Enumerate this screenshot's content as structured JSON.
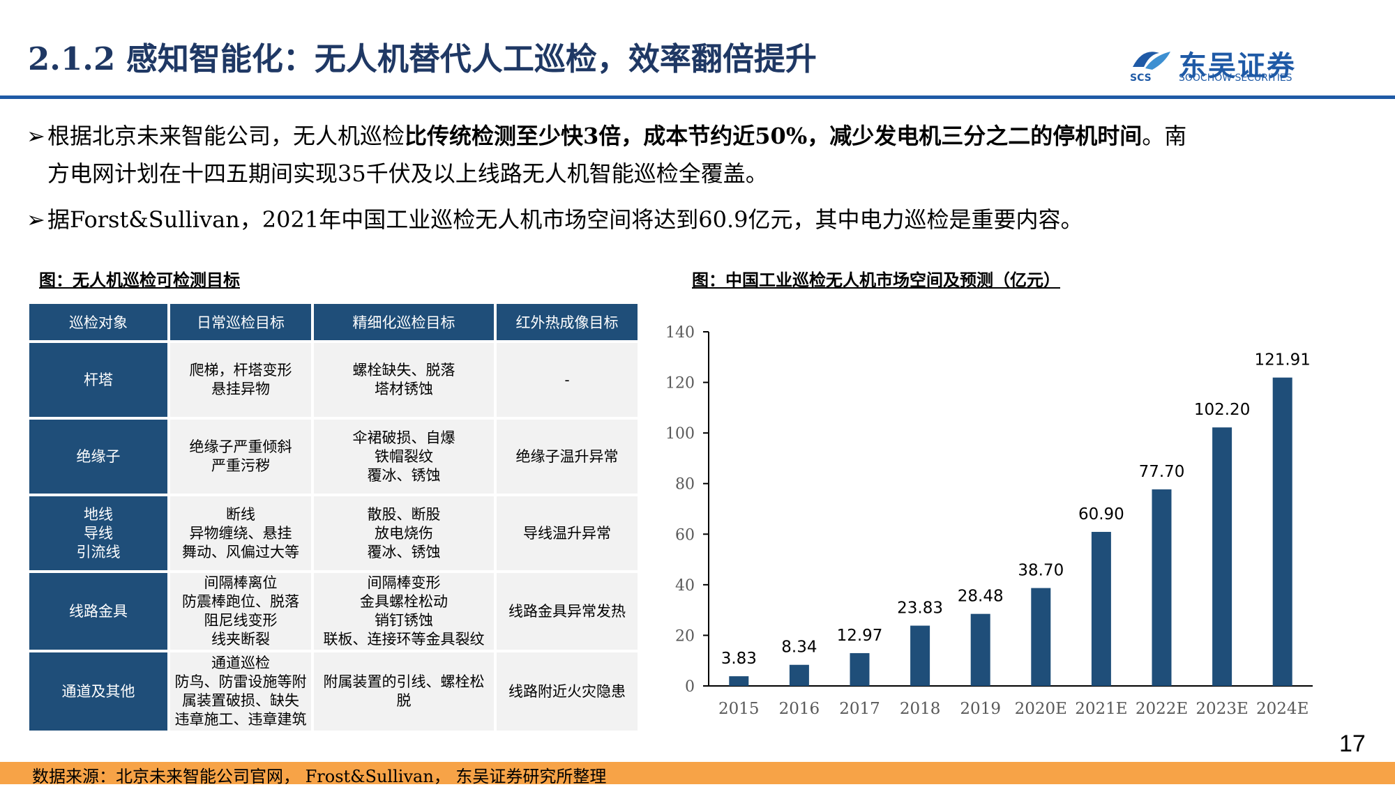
{
  "header": {
    "title": "2.1.2 感知智能化：无人机替代人工巡检，效率翻倍提升",
    "logo_cn": "东吴证券",
    "logo_en": "SOOCHOW SECURITIES",
    "logo_mark": "SCS"
  },
  "bullets": [
    {
      "mark": "➢",
      "p1": "根据北京未来智能公司，无人机巡检",
      "bold": "比传统检测至少快3倍，成本节约近50%，减少发电机三分之二的停机时间",
      "p2": "。南",
      "line2": "方电网计划在十四五期间实现35千伏及以上线路无人机智能巡检全覆盖。"
    },
    {
      "mark": "➢",
      "text": "据Forst&Sullivan，2021年中国工业巡检无人机市场空间将达到60.9亿元，其中电力巡检是重要内容。"
    }
  ],
  "table_caption": "图：无人机巡检可检测目标",
  "table": {
    "headers": [
      "巡检对象",
      "日常巡检目标",
      "精细化巡检目标",
      "红外热成像目标"
    ],
    "rows": [
      {
        "obj": [
          "杆塔"
        ],
        "daily": [
          "爬梯，杆塔变形",
          "悬挂异物"
        ],
        "fine": [
          "螺栓缺失、脱落",
          "塔材锈蚀"
        ],
        "ir": [
          "-"
        ]
      },
      {
        "obj": [
          "绝缘子"
        ],
        "daily": [
          "绝缘子严重倾斜",
          "严重污秽"
        ],
        "fine": [
          "伞裙破损、自爆",
          "铁帽裂纹",
          "覆冰、锈蚀"
        ],
        "ir": [
          "绝缘子温升异常"
        ]
      },
      {
        "obj": [
          "地线",
          "导线",
          "引流线"
        ],
        "daily": [
          "断线",
          "异物缠绕、悬挂",
          "舞动、风偏过大等"
        ],
        "fine": [
          "散股、断股",
          "放电烧伤",
          "覆冰、锈蚀"
        ],
        "ir": [
          "导线温升异常"
        ]
      },
      {
        "obj": [
          "线路金具"
        ],
        "daily": [
          "间隔棒离位",
          "防震棒跑位、脱落",
          "阻尼线变形",
          "线夹断裂"
        ],
        "fine": [
          "间隔棒变形",
          "金具螺栓松动",
          "销钉锈蚀",
          "联板、连接环等金具裂纹"
        ],
        "ir": [
          "线路金具异常发热"
        ]
      },
      {
        "obj": [
          "通道及其他"
        ],
        "daily": [
          "通道巡检",
          "防鸟、防雷设施等附",
          "属装置破损、缺失",
          "违章施工、违章建筑"
        ],
        "fine": [
          "附属装置的引线、螺栓松",
          "脱"
        ],
        "ir": [
          "线路附近火灾隐患"
        ]
      }
    ]
  },
  "chart_caption": "图：中国工业巡检无人机市场空间及预测（亿元）",
  "chart_data": {
    "type": "bar",
    "categories": [
      "2015",
      "2016",
      "2017",
      "2018",
      "2019",
      "2020E",
      "2021E",
      "2022E",
      "2023E",
      "2024E"
    ],
    "values": [
      3.83,
      8.34,
      12.97,
      23.83,
      28.48,
      38.7,
      60.9,
      77.7,
      102.2,
      121.91
    ],
    "labels": [
      "3.83",
      "8.34",
      "12.97",
      "23.83",
      "28.48",
      "38.70",
      "60.90",
      "77.70",
      "102.20",
      "121.91"
    ],
    "ylim": [
      0,
      140
    ],
    "yticks": [
      0,
      20,
      40,
      60,
      80,
      100,
      120,
      140
    ],
    "bar_color": "#1f4e79",
    "title": "",
    "xlabel": "",
    "ylabel": ""
  },
  "footer": {
    "source": "数据来源：北京未来智能公司官网， Frost&Sullivan， 东吴证券研究所整理",
    "page": "17"
  },
  "colors": {
    "accent": "#1f5aa6",
    "table_header": "#1f4e79",
    "footer_bar": "#f7a347"
  }
}
